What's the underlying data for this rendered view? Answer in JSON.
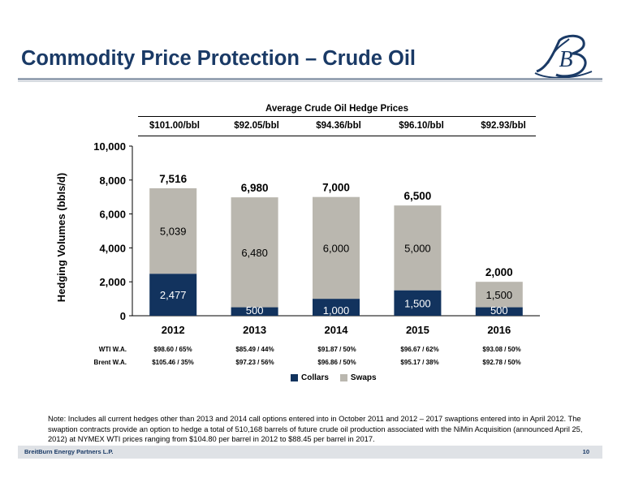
{
  "page": {
    "title": "Commodity Price Protection – Crude Oil",
    "logo_text": "B",
    "footer_company": "BreitBurn Energy Partners L.P.",
    "page_number": "10",
    "note": "Note: Includes all current hedges other than 2013 and 2014 call options entered into in October 2011 and 2012 – 2017 swaptions entered into in April 2012. The swaption contracts provide an option to hedge a total of 510,168 barrels of future crude oil production associated with the NiMin Acquisition (announced April 25, 2012) at NYMEX WTI prices ranging from $104.80 per barrel in 2012 to $88.45 per barrel in 2017."
  },
  "colors": {
    "navy": "#12335e",
    "gray": "#bab7af",
    "title": "#1a3a66"
  },
  "hedge_prices": {
    "title": "Average Crude Oil Hedge Prices",
    "values": [
      "$101.00/bbl",
      "$92.05/bbl",
      "$94.36/bbl",
      "$96.10/bbl",
      "$92.93/bbl"
    ]
  },
  "weighted_averages": {
    "wti_label": "WTI W.A.",
    "brent_label": "Brent W.A.",
    "wti": [
      "$98.60 / 65%",
      "$85.49 / 44%",
      "$91.87 / 50%",
      "$96.67 / 62%",
      "$93.08 / 50%"
    ],
    "brent": [
      "$105.46 / 35%",
      "$97.23 / 56%",
      "$96.86 / 50%",
      "$95.17 / 38%",
      "$92.78 / 50%"
    ]
  },
  "chart_data": {
    "type": "bar",
    "stacked": true,
    "categories": [
      "2012",
      "2013",
      "2014",
      "2015",
      "2016"
    ],
    "series": [
      {
        "name": "Collars",
        "values": [
          2477,
          500,
          1000,
          1500,
          500
        ],
        "labels": [
          "2,477",
          "500",
          "1,000",
          "1,500",
          "500"
        ],
        "color": "#12335e"
      },
      {
        "name": "Swaps",
        "values": [
          5039,
          6480,
          6000,
          5000,
          1500
        ],
        "labels": [
          "5,039",
          "6,480",
          "6,000",
          "5,000",
          "1,500"
        ],
        "color": "#bab7af"
      }
    ],
    "totals": [
      7516,
      6980,
      7000,
      6500,
      2000
    ],
    "total_labels": [
      "7,516",
      "6,980",
      "7,000",
      "6,500",
      "2,000"
    ],
    "ylabel": "Hedging Volumes (bbls/d)",
    "ylim": [
      0,
      10000
    ],
    "yticks": [
      0,
      2000,
      4000,
      6000,
      8000,
      10000
    ],
    "ytick_labels": [
      "0",
      "2,000",
      "4,000",
      "6,000",
      "8,000",
      "10,000"
    ],
    "grid": false,
    "legend_position": "bottom"
  }
}
